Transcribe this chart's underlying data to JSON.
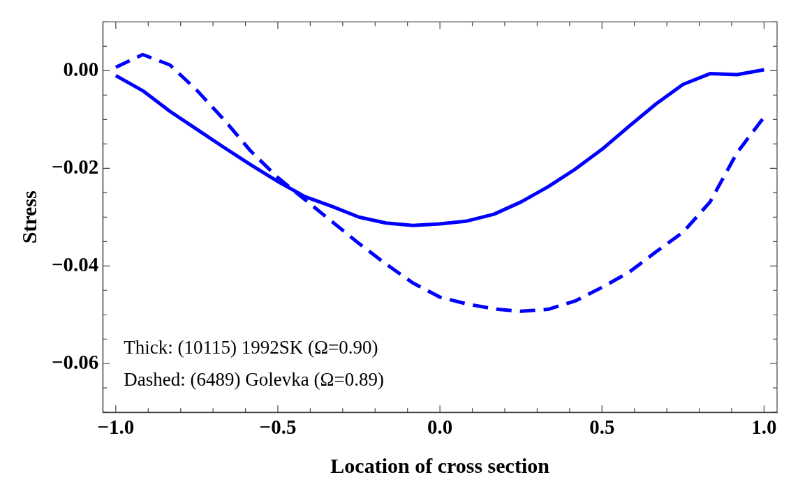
{
  "chart_data": {
    "type": "line",
    "xlabel": "Location of cross section",
    "ylabel": "Stress",
    "x": [
      -1,
      -0.9167,
      -0.8333,
      -0.75,
      -0.6667,
      -0.5833,
      -0.5,
      -0.4167,
      -0.3333,
      -0.25,
      -0.1667,
      -0.0833,
      0,
      0.0833,
      0.1667,
      0.25,
      0.3333,
      0.4167,
      0.5,
      0.5833,
      0.6667,
      0.75,
      0.8333,
      0.9167,
      1
    ],
    "series": [
      {
        "color": "#0000ff",
        "line_style": "solid",
        "values": [
          -0.001,
          -0.0041,
          -0.0083,
          -0.012,
          -0.0157,
          -0.0193,
          -0.0227,
          -0.0258,
          -0.0278,
          -0.03,
          -0.0312,
          -0.0317,
          -0.0314,
          -0.0308,
          -0.0294,
          -0.0269,
          -0.0238,
          -0.0202,
          -0.0161,
          -0.0114,
          -0.0068,
          -0.0028,
          -0.0006,
          -0.0008,
          0.0002
        ]
      },
      {
        "color": "#0000ff",
        "line_style": "dashed",
        "values": [
          0.0007,
          0.0033,
          0.0012,
          -0.004,
          -0.01,
          -0.0165,
          -0.0219,
          -0.0264,
          -0.0309,
          -0.0354,
          -0.0396,
          -0.0435,
          -0.0464,
          -0.0478,
          -0.0488,
          -0.0493,
          -0.0489,
          -0.0472,
          -0.0444,
          -0.0413,
          -0.0371,
          -0.0331,
          -0.0269,
          -0.0168,
          -0.0095
        ]
      }
    ],
    "xlim": [
      -1.04,
      1.04
    ],
    "ylim": [
      -0.07,
      0.01
    ],
    "xticks": [
      {
        "value": -1,
        "label": "−1.0"
      },
      {
        "value": -0.9,
        "label": null
      },
      {
        "value": -0.8,
        "label": null
      },
      {
        "value": -0.7,
        "label": null
      },
      {
        "value": -0.6,
        "label": null
      },
      {
        "value": -0.5,
        "label": "−0.5"
      },
      {
        "value": -0.4,
        "label": null
      },
      {
        "value": -0.3,
        "label": null
      },
      {
        "value": -0.2,
        "label": null
      },
      {
        "value": -0.1,
        "label": null
      },
      {
        "value": 0,
        "label": "0.0"
      },
      {
        "value": 0.1,
        "label": null
      },
      {
        "value": 0.2,
        "label": null
      },
      {
        "value": 0.3,
        "label": null
      },
      {
        "value": 0.4,
        "label": null
      },
      {
        "value": 0.5,
        "label": "0.5"
      },
      {
        "value": 0.6,
        "label": null
      },
      {
        "value": 0.7,
        "label": null
      },
      {
        "value": 0.8,
        "label": null
      },
      {
        "value": 0.9,
        "label": null
      },
      {
        "value": 1,
        "label": "1.0"
      }
    ],
    "yticks": [
      {
        "value": -0.07,
        "label": null
      },
      {
        "value": -0.065,
        "label": null
      },
      {
        "value": -0.06,
        "label": "−0.06"
      },
      {
        "value": -0.055,
        "label": null
      },
      {
        "value": -0.05,
        "label": null
      },
      {
        "value": -0.045,
        "label": null
      },
      {
        "value": -0.04,
        "label": "−0.04"
      },
      {
        "value": -0.035,
        "label": null
      },
      {
        "value": -0.03,
        "label": null
      },
      {
        "value": -0.025,
        "label": null
      },
      {
        "value": -0.02,
        "label": "−0.02"
      },
      {
        "value": -0.015,
        "label": null
      },
      {
        "value": -0.01,
        "label": null
      },
      {
        "value": -0.005,
        "label": null
      },
      {
        "value": 0,
        "label": "0.00"
      },
      {
        "value": 0.005,
        "label": null
      },
      {
        "value": 0.01,
        "label": null
      }
    ],
    "annotations": [
      "Thick: (10115) 1992SK (Ω=0.90)",
      "Dashed: (6489) Golevka (Ω=0.89)"
    ],
    "grid": false,
    "legend": false,
    "marker": "none"
  }
}
